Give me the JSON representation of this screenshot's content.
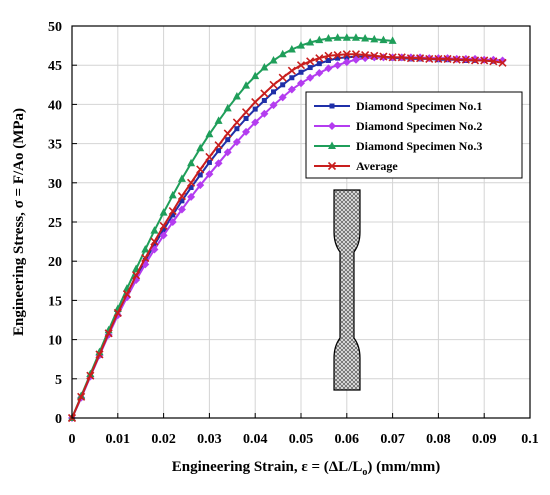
{
  "chart_data": {
    "type": "line",
    "xlabel": "Engineering Strain, ε = (ΔL/L",
    "xlabel_sub": "o",
    "xlabel_end": ") (mm/mm)",
    "ylabel": "Engineering Stress, σ = F/Ao (MPa)",
    "xlim": [
      0,
      0.1
    ],
    "ylim": [
      0,
      50
    ],
    "x_ticks": [
      "0",
      "0.01",
      "0.02",
      "0.03",
      "0.04",
      "0.05",
      "0.06",
      "0.07",
      "0.08",
      "0.09",
      "0.1"
    ],
    "y_ticks": [
      "0",
      "5",
      "10",
      "15",
      "20",
      "25",
      "30",
      "35",
      "40",
      "45",
      "50"
    ],
    "grid": "both",
    "legend_position": "right",
    "series": [
      {
        "name": "Diamond Specimen No.1",
        "color": "#1f2fa8",
        "marker": "square",
        "x": [
          0,
          0.002,
          0.004,
          0.006,
          0.008,
          0.01,
          0.012,
          0.014,
          0.016,
          0.018,
          0.02,
          0.022,
          0.024,
          0.026,
          0.028,
          0.03,
          0.032,
          0.034,
          0.036,
          0.038,
          0.04,
          0.042,
          0.044,
          0.046,
          0.048,
          0.05,
          0.052,
          0.054,
          0.056,
          0.058,
          0.06,
          0.062,
          0.064,
          0.066,
          0.068,
          0.07,
          0.072,
          0.074,
          0.076,
          0.078,
          0.08,
          0.082,
          0.084,
          0.086,
          0.088,
          0.09,
          0.092
        ],
        "y": [
          0,
          2.6,
          5.3,
          8.0,
          10.7,
          13.2,
          15.6,
          17.9,
          20.1,
          22.1,
          24.0,
          25.9,
          27.7,
          29.4,
          31.0,
          32.6,
          34.1,
          35.5,
          36.9,
          38.2,
          39.4,
          40.5,
          41.6,
          42.5,
          43.4,
          44.1,
          44.7,
          45.2,
          45.6,
          45.9,
          46.0,
          46.1,
          46.1,
          46.0,
          46.0,
          45.9,
          45.9,
          45.8,
          45.8,
          45.8,
          45.7,
          45.7,
          45.7,
          45.6,
          45.6,
          45.6,
          45.5
        ]
      },
      {
        "name": "Diamond Specimen No.2",
        "color": "#b43cf0",
        "marker": "diamond",
        "x": [
          0,
          0.002,
          0.004,
          0.006,
          0.008,
          0.01,
          0.012,
          0.014,
          0.016,
          0.018,
          0.02,
          0.022,
          0.024,
          0.026,
          0.028,
          0.03,
          0.032,
          0.034,
          0.036,
          0.038,
          0.04,
          0.042,
          0.044,
          0.046,
          0.048,
          0.05,
          0.052,
          0.054,
          0.056,
          0.058,
          0.06,
          0.062,
          0.064,
          0.066,
          0.068,
          0.07,
          0.072,
          0.074,
          0.076,
          0.078,
          0.08,
          0.082,
          0.084,
          0.086,
          0.088,
          0.09,
          0.092,
          0.094
        ],
        "y": [
          0,
          2.6,
          5.3,
          8.0,
          10.6,
          13.1,
          15.4,
          17.6,
          19.6,
          21.5,
          23.3,
          25.0,
          26.6,
          28.2,
          29.7,
          31.1,
          32.5,
          33.9,
          35.2,
          36.5,
          37.7,
          38.8,
          39.9,
          40.9,
          41.9,
          42.7,
          43.4,
          44.0,
          44.6,
          45.0,
          45.4,
          45.7,
          45.9,
          46.0,
          46.0,
          46.0,
          46.0,
          46.0,
          46.0,
          45.9,
          45.9,
          45.9,
          45.8,
          45.8,
          45.8,
          45.7,
          45.7,
          45.6
        ]
      },
      {
        "name": "Diamond Specimen No.3",
        "color": "#1f9e5a",
        "marker": "triangle",
        "x": [
          0,
          0.002,
          0.004,
          0.006,
          0.008,
          0.01,
          0.012,
          0.014,
          0.016,
          0.018,
          0.02,
          0.022,
          0.024,
          0.026,
          0.028,
          0.03,
          0.032,
          0.034,
          0.036,
          0.038,
          0.04,
          0.042,
          0.044,
          0.046,
          0.048,
          0.05,
          0.052,
          0.054,
          0.056,
          0.058,
          0.06,
          0.062,
          0.064,
          0.066,
          0.068,
          0.07
        ],
        "y": [
          0,
          2.8,
          5.6,
          8.4,
          11.2,
          13.9,
          16.5,
          19.0,
          21.5,
          23.9,
          26.2,
          28.4,
          30.5,
          32.5,
          34.4,
          36.2,
          37.9,
          39.5,
          41.0,
          42.4,
          43.6,
          44.7,
          45.6,
          46.4,
          47.0,
          47.5,
          47.9,
          48.2,
          48.4,
          48.5,
          48.5,
          48.5,
          48.4,
          48.3,
          48.2,
          48.1
        ]
      },
      {
        "name": "Average",
        "color": "#c81e1e",
        "marker": "x",
        "x": [
          0,
          0.002,
          0.004,
          0.006,
          0.008,
          0.01,
          0.012,
          0.014,
          0.016,
          0.018,
          0.02,
          0.022,
          0.024,
          0.026,
          0.028,
          0.03,
          0.032,
          0.034,
          0.036,
          0.038,
          0.04,
          0.042,
          0.044,
          0.046,
          0.048,
          0.05,
          0.052,
          0.054,
          0.056,
          0.058,
          0.06,
          0.062,
          0.064,
          0.066,
          0.068,
          0.07,
          0.072,
          0.074,
          0.076,
          0.078,
          0.08,
          0.082,
          0.084,
          0.086,
          0.088,
          0.09,
          0.092,
          0.094
        ],
        "y": [
          0,
          2.7,
          5.4,
          8.1,
          10.8,
          13.4,
          15.8,
          18.2,
          20.4,
          22.5,
          24.5,
          26.4,
          28.3,
          30.0,
          31.7,
          33.3,
          34.8,
          36.3,
          37.7,
          39.0,
          40.3,
          41.4,
          42.5,
          43.4,
          44.3,
          45.0,
          45.5,
          45.9,
          46.2,
          46.3,
          46.4,
          46.4,
          46.3,
          46.2,
          46.1,
          46.0,
          46.0,
          45.9,
          45.9,
          45.8,
          45.8,
          45.8,
          45.7,
          45.7,
          45.6,
          45.6,
          45.5,
          45.3
        ]
      }
    ]
  }
}
